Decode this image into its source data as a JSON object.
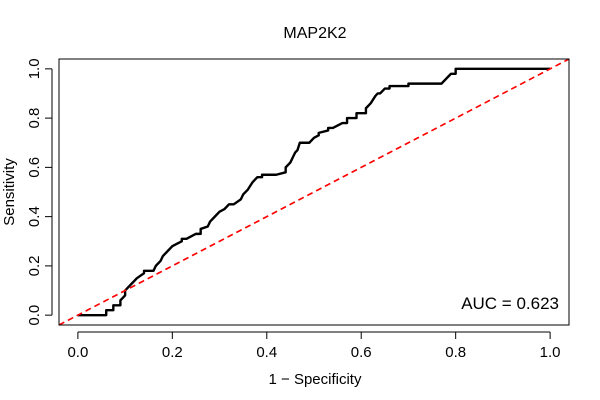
{
  "chart_data": {
    "type": "line",
    "title": "MAP2K2",
    "xlabel": "1 − Specificity",
    "ylabel": "Sensitivity",
    "xlim": [
      -0.04,
      1.04
    ],
    "ylim": [
      -0.04,
      1.04
    ],
    "xticks": [
      "0.0",
      "0.2",
      "0.4",
      "0.6",
      "0.8",
      "1.0"
    ],
    "yticks": [
      "0.0",
      "0.2",
      "0.4",
      "0.6",
      "0.8",
      "1.0"
    ],
    "grid": false,
    "annotation": "AUC = 0.623",
    "series": [
      {
        "style": "solid",
        "color": "#000000",
        "x": [
          0.0,
          0.06,
          0.06,
          0.075,
          0.075,
          0.09,
          0.09,
          0.1,
          0.1,
          0.11,
          0.115,
          0.125,
          0.14,
          0.14,
          0.16,
          0.165,
          0.175,
          0.18,
          0.19,
          0.2,
          0.21,
          0.22,
          0.22,
          0.23,
          0.25,
          0.26,
          0.26,
          0.275,
          0.28,
          0.29,
          0.3,
          0.31,
          0.32,
          0.33,
          0.345,
          0.35,
          0.36,
          0.37,
          0.38,
          0.39,
          0.39,
          0.4,
          0.41,
          0.42,
          0.44,
          0.44,
          0.45,
          0.455,
          0.46,
          0.465,
          0.47,
          0.48,
          0.48,
          0.49,
          0.5,
          0.51,
          0.51,
          0.53,
          0.53,
          0.54,
          0.56,
          0.57,
          0.57,
          0.59,
          0.59,
          0.61,
          0.61,
          0.62,
          0.63,
          0.635,
          0.64,
          0.65,
          0.66,
          0.66,
          0.7,
          0.7,
          0.77,
          0.78,
          0.785,
          0.79,
          0.8,
          0.8,
          1.0
        ],
        "y": [
          0.0,
          0.0,
          0.02,
          0.02,
          0.04,
          0.04,
          0.06,
          0.08,
          0.1,
          0.12,
          0.13,
          0.15,
          0.17,
          0.18,
          0.18,
          0.2,
          0.22,
          0.24,
          0.26,
          0.28,
          0.29,
          0.3,
          0.31,
          0.31,
          0.33,
          0.33,
          0.35,
          0.36,
          0.38,
          0.4,
          0.42,
          0.43,
          0.45,
          0.45,
          0.47,
          0.49,
          0.51,
          0.54,
          0.56,
          0.56,
          0.57,
          0.57,
          0.57,
          0.57,
          0.58,
          0.6,
          0.62,
          0.64,
          0.66,
          0.67,
          0.7,
          0.7,
          0.7,
          0.7,
          0.72,
          0.73,
          0.74,
          0.75,
          0.76,
          0.76,
          0.78,
          0.78,
          0.8,
          0.8,
          0.82,
          0.82,
          0.84,
          0.86,
          0.89,
          0.9,
          0.9,
          0.92,
          0.92,
          0.93,
          0.93,
          0.94,
          0.94,
          0.96,
          0.97,
          0.98,
          0.98,
          1.0,
          1.0
        ]
      },
      {
        "style": "dashed",
        "color": "#ff0000",
        "x": [
          -0.04,
          1.04
        ],
        "y": [
          -0.04,
          1.04
        ]
      }
    ]
  }
}
